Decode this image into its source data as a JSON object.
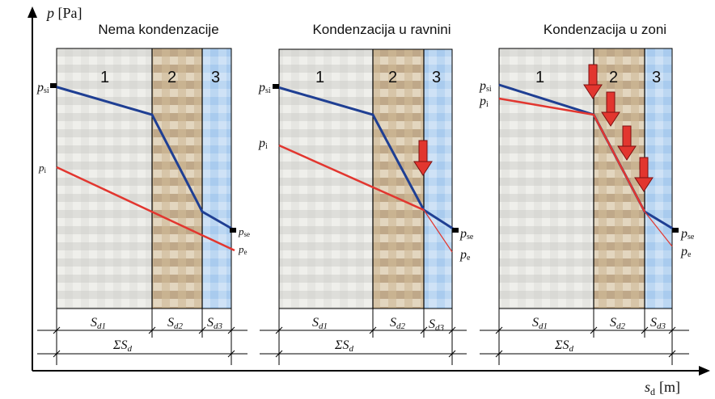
{
  "axes": {
    "y_label": "p [Pa]",
    "x_label": "s",
    "x_label_sub": "d",
    "x_label_unit": "[m]"
  },
  "panels": [
    {
      "title": "Nema kondenzacije",
      "layers": [
        "1",
        "2",
        "3"
      ],
      "p_si": {
        "base": "p",
        "sub": "si"
      },
      "p_i": {
        "base": "p",
        "sub": "i"
      },
      "p_se": {
        "base": "p",
        "sub": "se"
      },
      "p_e": {
        "base": "p",
        "sub": "e"
      },
      "dims": [
        {
          "base": "S",
          "sub": "d1"
        },
        {
          "base": "S",
          "sub": "d2"
        },
        {
          "base": "S",
          "sub": "d3"
        }
      ],
      "sum": {
        "pre": "ΣS",
        "sub": "d"
      },
      "arrows": 0
    },
    {
      "title": "Kondenzacija u ravnini",
      "layers": [
        "1",
        "2",
        "3"
      ],
      "p_si": {
        "base": "p",
        "sub": "si"
      },
      "p_i": {
        "base": "p",
        "sub": "i"
      },
      "p_se": {
        "base": "p",
        "sub": "se"
      },
      "p_e": {
        "base": "p",
        "sub": "e"
      },
      "dims": [
        {
          "base": "S",
          "sub": "d1"
        },
        {
          "base": "S",
          "sub": "d2"
        },
        {
          "base": "S",
          "sub": "d3"
        }
      ],
      "sum": {
        "pre": "ΣS",
        "sub": "d"
      },
      "arrows": 1
    },
    {
      "title": "Kondenzacija u zoni",
      "layers": [
        "1",
        "2",
        "3"
      ],
      "p_si": {
        "base": "p",
        "sub": "si"
      },
      "p_i": {
        "base": "p",
        "sub": "i"
      },
      "p_se": {
        "base": "p",
        "sub": "se"
      },
      "p_e": {
        "base": "p",
        "sub": "e"
      },
      "dims": [
        {
          "base": "S",
          "sub": "d1"
        },
        {
          "base": "S",
          "sub": "d2"
        },
        {
          "base": "S",
          "sub": "d3"
        }
      ],
      "sum": {
        "pre": "ΣS",
        "sub": "d"
      },
      "arrows": 4
    }
  ],
  "colors": {
    "saturation_line": "#1f3f93",
    "partial_pressure_line": "#e2362f",
    "layer1": "#e4e4e0",
    "layer2": "#d6c3a6",
    "layer3": "#b8d5f1",
    "arrow": "#e2362f"
  }
}
